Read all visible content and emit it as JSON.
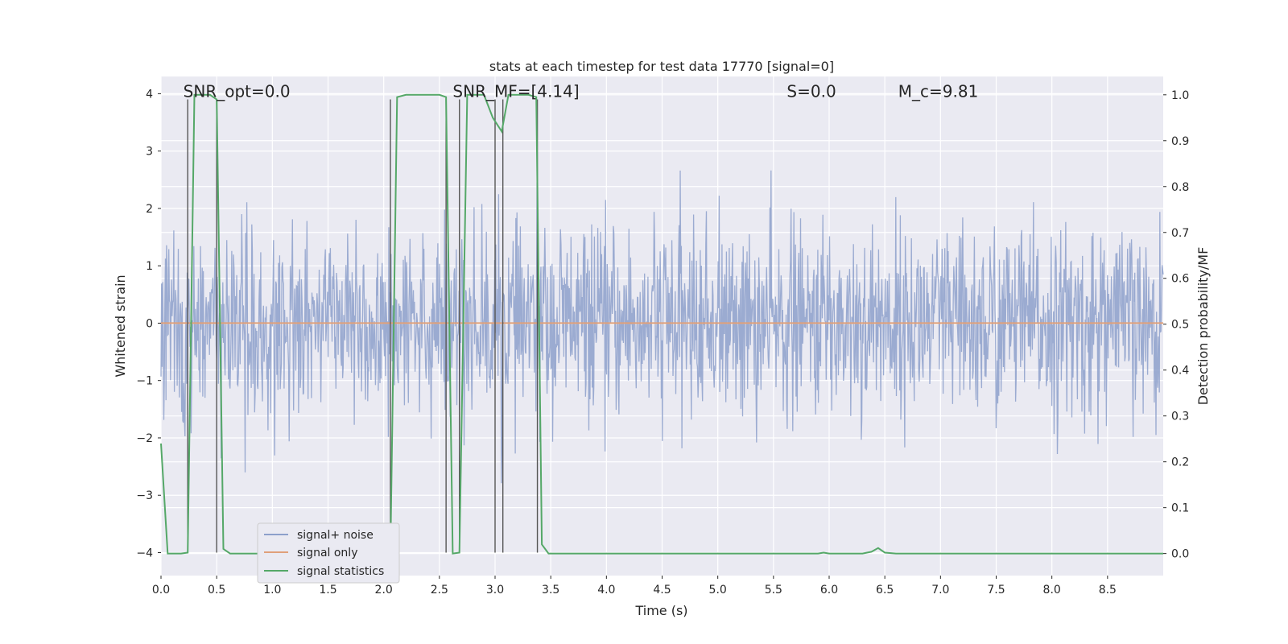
{
  "chart_data": {
    "type": "line",
    "title": "stats at each timestep for test data 17770 [signal=0]",
    "xlabel": "Time (s)",
    "ylabel": "Whitened strain",
    "y2label": "Detection probability/MF",
    "xlim": [
      0,
      9.0
    ],
    "ylim": [
      -4.4,
      4.3
    ],
    "y2lim": [
      -0.048,
      1.04
    ],
    "grid": true,
    "legend_placement": "lower-left",
    "x_ticks": [
      "0.0",
      "0.5",
      "1.0",
      "1.5",
      "2.0",
      "2.5",
      "3.0",
      "3.5",
      "4.0",
      "4.5",
      "5.0",
      "5.5",
      "6.0",
      "6.5",
      "7.0",
      "7.5",
      "8.0",
      "8.5"
    ],
    "x_tick_values": [
      0,
      0.5,
      1.0,
      1.5,
      2.0,
      2.5,
      3.0,
      3.5,
      4.0,
      4.5,
      5.0,
      5.5,
      6.0,
      6.5,
      7.0,
      7.5,
      8.0,
      8.5
    ],
    "y_ticks": [
      "4",
      "3",
      "2",
      "1",
      "0",
      "−1",
      "−2",
      "−3",
      "−4"
    ],
    "y_tick_values": [
      4,
      3,
      2,
      1,
      0,
      -1,
      -2,
      -3,
      -4
    ],
    "y2_ticks": [
      "1.0",
      "0.9",
      "0.8",
      "0.7",
      "0.6",
      "0.5",
      "0.4",
      "0.3",
      "0.2",
      "0.1",
      "0.0"
    ],
    "y2_tick_values": [
      1.0,
      0.9,
      0.8,
      0.7,
      0.6,
      0.5,
      0.4,
      0.3,
      0.2,
      0.1,
      0.0
    ],
    "annotations": [
      {
        "text": "SNR_opt=0.0",
        "x": 0.2,
        "y": 4.0
      },
      {
        "text": "SNR_MF=[4.14]",
        "x": 2.62,
        "y": 4.0
      },
      {
        "text": "S=0.0",
        "x": 5.62,
        "y": 4.0
      },
      {
        "text": "M_c=9.81",
        "x": 6.62,
        "y": 4.0
      }
    ],
    "vertical_markers": [
      0.24,
      0.5,
      2.06,
      2.56,
      2.68,
      3.0,
      3.07,
      3.38
    ],
    "series": [
      {
        "name": "signal+ noise",
        "color": "#8da0cb",
        "style": "noise",
        "amplitude_sigma": 0.8,
        "x_start": 0.0,
        "x_end": 9.0,
        "samples": 1800
      },
      {
        "name": "signal only",
        "color": "#e0a07a",
        "x": [
          0.0,
          9.0
        ],
        "y": [
          0.0,
          0.0
        ]
      },
      {
        "name": "signal statistics",
        "color": "#55a868",
        "axis": "right",
        "x": [
          0.0,
          0.06,
          0.1,
          0.18,
          0.24,
          0.3,
          0.36,
          0.44,
          0.5,
          0.56,
          0.62,
          0.7,
          0.8,
          1.0,
          1.5,
          2.0,
          2.06,
          2.12,
          2.2,
          2.3,
          2.4,
          2.5,
          2.56,
          2.62,
          2.68,
          2.75,
          2.8,
          2.9,
          2.98,
          3.06,
          3.12,
          3.2,
          3.3,
          3.37,
          3.42,
          3.48,
          3.6,
          4.0,
          4.5,
          5.0,
          5.5,
          5.9,
          5.95,
          6.0,
          6.3,
          6.38,
          6.44,
          6.5,
          6.6,
          7.0,
          7.5,
          8.0,
          8.5,
          9.0
        ],
        "y": [
          0.24,
          0.0,
          0.0,
          0.0,
          0.002,
          1.0,
          1.0,
          1.0,
          0.99,
          0.01,
          0.0,
          0.0,
          0.0,
          0.0,
          0.0,
          0.0,
          0.002,
          0.995,
          1.0,
          1.0,
          1.0,
          1.0,
          0.995,
          0.0,
          0.002,
          1.0,
          1.0,
          1.0,
          0.95,
          0.92,
          1.0,
          1.0,
          1.0,
          0.995,
          0.02,
          0.0,
          0.0,
          0.0,
          0.0,
          0.0,
          0.0,
          0.0,
          0.002,
          0.0,
          0.0,
          0.004,
          0.012,
          0.002,
          0.0,
          0.0,
          0.0,
          0.0,
          0.0,
          0.0
        ]
      }
    ]
  }
}
